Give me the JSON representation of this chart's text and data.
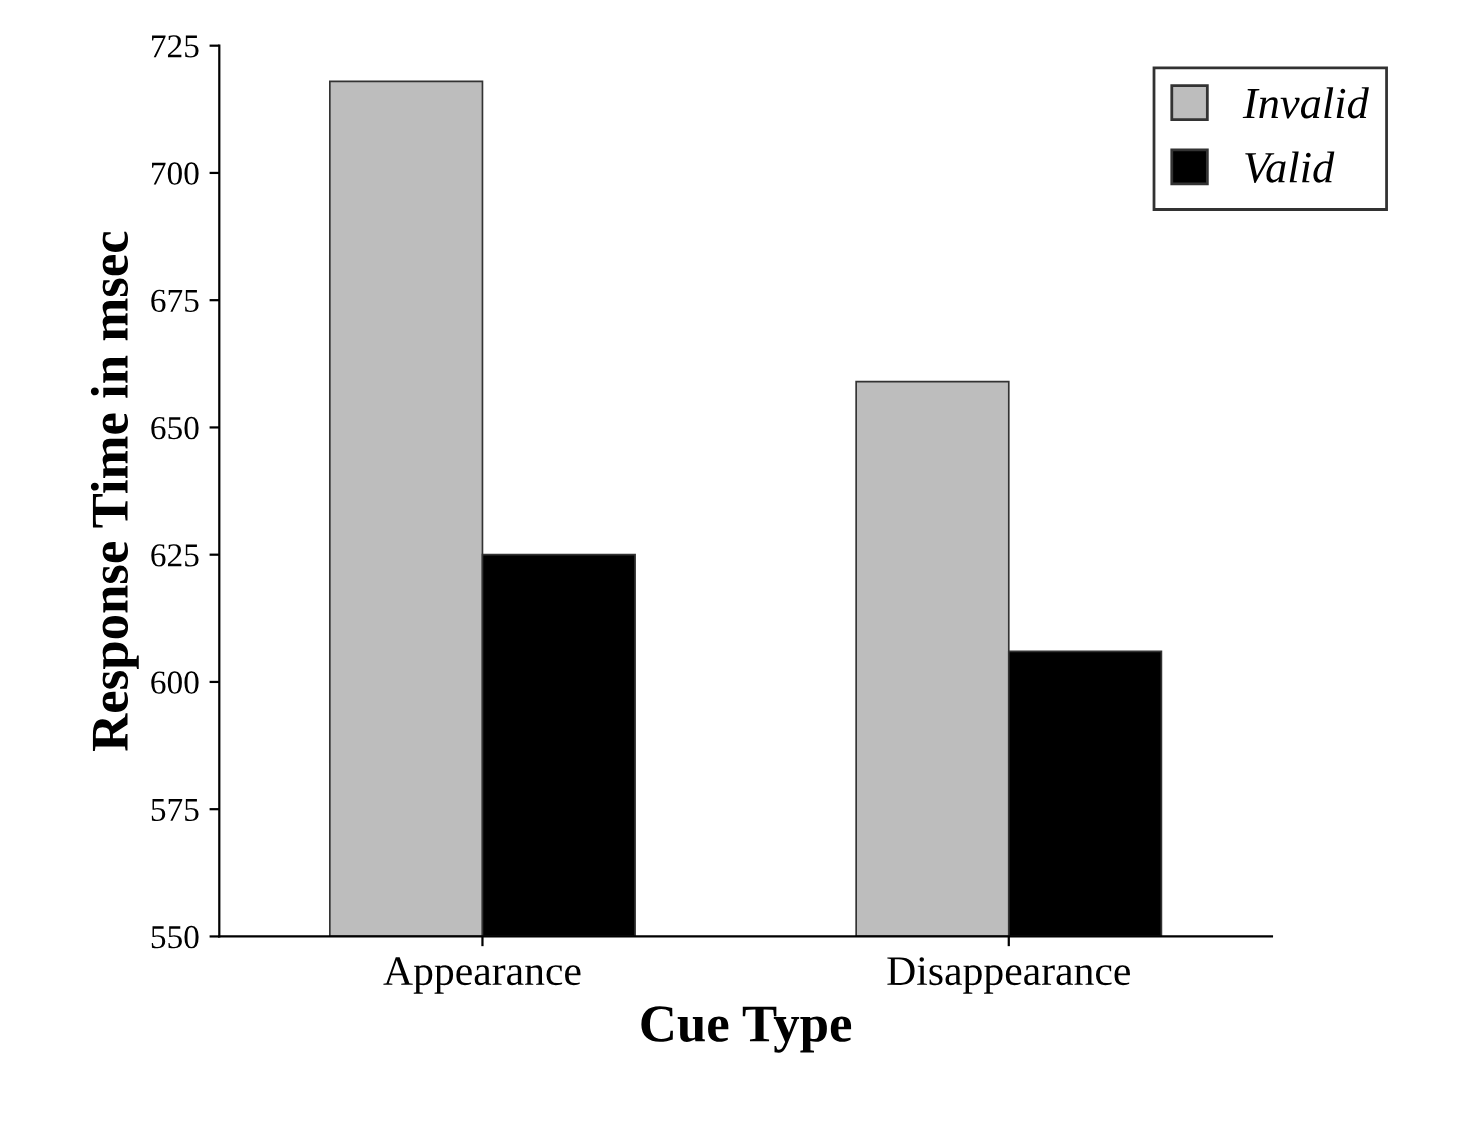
{
  "chart_data": {
    "type": "bar",
    "xlabel": "Cue Type",
    "ylabel": "Response Time in msec",
    "categories": [
      "Appearance",
      "Disappearance"
    ],
    "series": [
      {
        "name": "Invalid",
        "color": "#bdbdbd",
        "values": [
          718,
          659
        ]
      },
      {
        "name": "Valid",
        "color": "#000000",
        "values": [
          625,
          606
        ]
      }
    ],
    "ylim": [
      550,
      725
    ],
    "yticks": [
      550,
      575,
      600,
      625,
      650,
      675,
      700,
      725
    ],
    "grid": false,
    "legend": "top right"
  }
}
